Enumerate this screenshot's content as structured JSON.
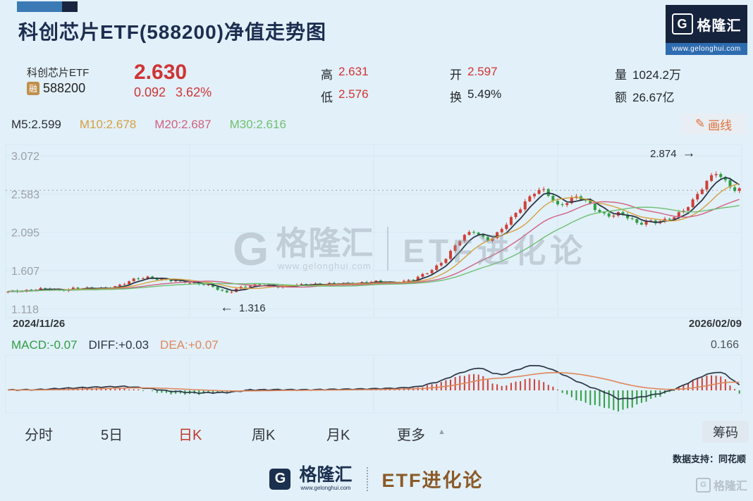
{
  "header": {
    "title": "科创芯片ETF(588200)净值走势图",
    "logo": {
      "g": "G",
      "brand": "格隆汇",
      "url": "www.gelonghui.com"
    }
  },
  "quote": {
    "name": "科创芯片ETF",
    "badge": "融",
    "code": "588200",
    "last": "2.630",
    "change": "0.092",
    "change_pct": "3.62%",
    "high_label": "高",
    "high": "2.631",
    "low_label": "低",
    "low": "2.576",
    "open_label": "开",
    "open": "2.597",
    "turnover_label": "换",
    "turnover": "5.49%",
    "volume_label": "量",
    "volume": "1024.2万",
    "amount_label": "额",
    "amount": "26.67亿"
  },
  "ma_bar": {
    "m5": "M5:2.599",
    "m10": "M10:2.678",
    "m20": "M20:2.687",
    "m30": "M30:2.616",
    "draw_icon": "✎",
    "draw_label": "画线"
  },
  "chart_data": {
    "type": "candlestick",
    "title": "科创芯片ETF(588200)净值走势图",
    "x_start_label": "2024/11/26",
    "x_end_label": "2026/02/09",
    "y_ticks": [
      "3.072",
      "2.583",
      "2.095",
      "1.607",
      "1.118"
    ],
    "y_tick_values": [
      3.072,
      2.583,
      2.095,
      1.607,
      1.118
    ],
    "ylim": [
      1.04,
      3.18
    ],
    "current_price": 2.63,
    "num_candles": 158,
    "ma_periods": [
      5,
      10,
      20,
      30
    ],
    "price_keyframes": [
      [
        0,
        1.33
      ],
      [
        0.02,
        1.355
      ],
      [
        0.045,
        1.37
      ],
      [
        0.07,
        1.355
      ],
      [
        0.09,
        1.385
      ],
      [
        0.11,
        1.37
      ],
      [
        0.135,
        1.39
      ],
      [
        0.155,
        1.42
      ],
      [
        0.175,
        1.5
      ],
      [
        0.19,
        1.53
      ],
      [
        0.205,
        1.5
      ],
      [
        0.225,
        1.47
      ],
      [
        0.245,
        1.465
      ],
      [
        0.262,
        1.44
      ],
      [
        0.278,
        1.4
      ],
      [
        0.292,
        1.345
      ],
      [
        0.3,
        1.33
      ],
      [
        0.315,
        1.39
      ],
      [
        0.335,
        1.41
      ],
      [
        0.355,
        1.425
      ],
      [
        0.375,
        1.4
      ],
      [
        0.395,
        1.415
      ],
      [
        0.415,
        1.44
      ],
      [
        0.435,
        1.43
      ],
      [
        0.455,
        1.435
      ],
      [
        0.475,
        1.45
      ],
      [
        0.5,
        1.46
      ],
      [
        0.52,
        1.45
      ],
      [
        0.54,
        1.47
      ],
      [
        0.555,
        1.49
      ],
      [
        0.57,
        1.56
      ],
      [
        0.585,
        1.66
      ],
      [
        0.6,
        1.78
      ],
      [
        0.615,
        1.96
      ],
      [
        0.628,
        2.08
      ],
      [
        0.638,
        2.12
      ],
      [
        0.648,
        2.04
      ],
      [
        0.658,
        1.99
      ],
      [
        0.668,
        2.06
      ],
      [
        0.68,
        2.18
      ],
      [
        0.695,
        2.36
      ],
      [
        0.708,
        2.5
      ],
      [
        0.72,
        2.6
      ],
      [
        0.73,
        2.63
      ],
      [
        0.74,
        2.56
      ],
      [
        0.752,
        2.44
      ],
      [
        0.762,
        2.48
      ],
      [
        0.775,
        2.55
      ],
      [
        0.787,
        2.5
      ],
      [
        0.8,
        2.42
      ],
      [
        0.812,
        2.34
      ],
      [
        0.825,
        2.31
      ],
      [
        0.838,
        2.33
      ],
      [
        0.85,
        2.26
      ],
      [
        0.862,
        2.21
      ],
      [
        0.875,
        2.25
      ],
      [
        0.888,
        2.22
      ],
      [
        0.9,
        2.24
      ],
      [
        0.912,
        2.3
      ],
      [
        0.925,
        2.4
      ],
      [
        0.938,
        2.52
      ],
      [
        0.95,
        2.66
      ],
      [
        0.96,
        2.78
      ],
      [
        0.968,
        2.86
      ],
      [
        0.976,
        2.8
      ],
      [
        0.985,
        2.72
      ],
      [
        0.993,
        2.64
      ],
      [
        1,
        2.63
      ]
    ],
    "annotations": [
      {
        "text": "1.316",
        "value": 1.316,
        "arrow": "←",
        "side": "low"
      },
      {
        "text": "2.874",
        "value": 2.874,
        "arrow": "→",
        "side": "high"
      }
    ]
  },
  "macd_data": {
    "type": "macd",
    "macd_label": "MACD:-0.07",
    "diff_label": "DIFF:+0.03",
    "dea_label": "DEA:+0.07",
    "scale_label": "0.166",
    "diff_keyframes": [
      [
        0,
        0.002
      ],
      [
        0.04,
        0.004
      ],
      [
        0.08,
        0.012
      ],
      [
        0.12,
        0.018
      ],
      [
        0.16,
        0.022
      ],
      [
        0.19,
        0.012
      ],
      [
        0.22,
        -0.004
      ],
      [
        0.26,
        -0.014
      ],
      [
        0.3,
        -0.012
      ],
      [
        0.33,
        0.002
      ],
      [
        0.37,
        0.004
      ],
      [
        0.41,
        0.003
      ],
      [
        0.45,
        0.006
      ],
      [
        0.49,
        0.008
      ],
      [
        0.53,
        0.012
      ],
      [
        0.56,
        0.02
      ],
      [
        0.59,
        0.05
      ],
      [
        0.62,
        0.1
      ],
      [
        0.645,
        0.128
      ],
      [
        0.66,
        0.1
      ],
      [
        0.675,
        0.086
      ],
      [
        0.7,
        0.12
      ],
      [
        0.718,
        0.142
      ],
      [
        0.738,
        0.126
      ],
      [
        0.758,
        0.09
      ],
      [
        0.778,
        0.05
      ],
      [
        0.798,
        0.016
      ],
      [
        0.815,
        -0.008
      ],
      [
        0.835,
        -0.048
      ],
      [
        0.855,
        -0.044
      ],
      [
        0.875,
        -0.03
      ],
      [
        0.895,
        -0.014
      ],
      [
        0.915,
        0.012
      ],
      [
        0.935,
        0.052
      ],
      [
        0.952,
        0.084
      ],
      [
        0.968,
        0.102
      ],
      [
        0.98,
        0.094
      ],
      [
        0.99,
        0.06
      ],
      [
        1,
        0.03
      ]
    ]
  },
  "tabs": {
    "items": [
      "分时",
      "5日",
      "日K",
      "周K",
      "月K",
      "更多"
    ],
    "active": "日K",
    "more_arrow": "▲",
    "chips_label": "筹码"
  },
  "footer": {
    "data_support": "数据支持：同花顺",
    "g": "G",
    "brand": "格隆汇",
    "url": "www.gelonghui.com",
    "sub_brand": "ETF进化论"
  },
  "colors": {
    "up": "#cf4036",
    "down": "#2f9e44",
    "m5": "#2b3646",
    "m10": "#d6a13f",
    "m20": "#d16180",
    "m30": "#6fbf73",
    "diff_line": "#2b3646",
    "dea_line": "#e0875b",
    "macd_green": "#2f9e44",
    "accent_red": "#cf3434",
    "grid": "#d6e9f3",
    "axis_text": "#9aa0a6",
    "dotted_line": "#9aa5ad"
  }
}
